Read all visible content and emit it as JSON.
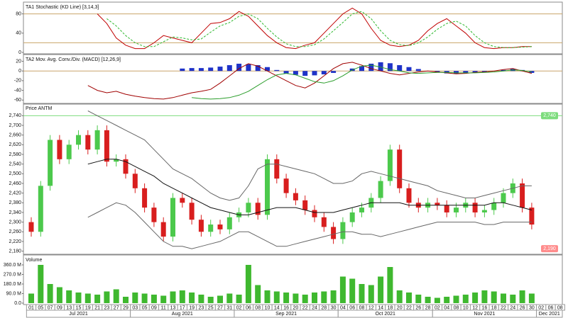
{
  "x_axis": {
    "dates": [
      "01",
      "05",
      "07",
      "09",
      "13",
      "15",
      "19",
      "21",
      "23",
      "27",
      "29",
      "03",
      "05",
      "09",
      "11",
      "13",
      "17",
      "19",
      "23",
      "25",
      "27",
      "31",
      "02",
      "06",
      "08",
      "10",
      "14",
      "16",
      "20",
      "22",
      "24",
      "28",
      "30",
      "04",
      "06",
      "08",
      "12",
      "14",
      "18",
      "20",
      "22",
      "26",
      "28",
      "02",
      "04",
      "08",
      "10",
      "12",
      "16",
      "18",
      "22",
      "24",
      "26",
      "30",
      "02",
      "06",
      "08"
    ],
    "months": [
      "Jul 2021",
      "Aug 2021",
      "Sep 2021",
      "Oct 2021",
      "Nov 2021",
      "Dec 2021"
    ]
  },
  "chart_data": [
    {
      "type": "line",
      "title": "TA1 Stochastic (KD Line) [3,14,3]",
      "ylim": [
        0,
        100
      ],
      "yticks": [
        0,
        40,
        80
      ],
      "levels": [
        20,
        80
      ],
      "level_color": "#c9a46a",
      "series": [
        {
          "name": "K",
          "color": "#c00000",
          "dash": false,
          "values": [
            null,
            null,
            null,
            null,
            null,
            null,
            null,
            80,
            60,
            30,
            15,
            8,
            8,
            20,
            35,
            30,
            25,
            20,
            40,
            60,
            62,
            70,
            85,
            75,
            55,
            35,
            20,
            10,
            8,
            15,
            20,
            40,
            60,
            80,
            92,
            80,
            50,
            25,
            15,
            12,
            15,
            25,
            45,
            60,
            70,
            55,
            40,
            20,
            10,
            8,
            10,
            10,
            12,
            12
          ]
        },
        {
          "name": "D",
          "color": "#2db82d",
          "dash": true,
          "values": [
            null,
            null,
            null,
            null,
            null,
            null,
            null,
            null,
            70,
            55,
            35,
            20,
            12,
            12,
            22,
            32,
            30,
            26,
            28,
            42,
            55,
            62,
            75,
            80,
            70,
            50,
            32,
            18,
            12,
            12,
            16,
            28,
            45,
            62,
            80,
            85,
            70,
            45,
            25,
            16,
            14,
            20,
            32,
            48,
            60,
            65,
            55,
            35,
            20,
            12,
            10,
            10,
            11,
            12
          ]
        }
      ]
    },
    {
      "type": "line",
      "title": "TA2 Mov. Avg. Conv./Div. (MACD) [12,26,9]",
      "ylim": [
        -64,
        31
      ],
      "yticks": [
        20,
        0,
        -20,
        -40,
        -60
      ],
      "levels": [
        0
      ],
      "level_color": "#c9a46a",
      "series": [
        {
          "name": "Histogram",
          "color": "#1f33c8",
          "style": "bar",
          "values": [
            null,
            null,
            null,
            null,
            null,
            null,
            null,
            null,
            null,
            null,
            null,
            null,
            null,
            null,
            null,
            null,
            5,
            6,
            6,
            7,
            9,
            12,
            15,
            14,
            12,
            8,
            2,
            -5,
            -8,
            -10,
            -9,
            -7,
            -4,
            0,
            5,
            10,
            15,
            18,
            16,
            12,
            8,
            4,
            0,
            -3,
            -5,
            -6,
            -4,
            -3,
            -2,
            0,
            2,
            4,
            2,
            -4
          ]
        },
        {
          "name": "MACD",
          "color": "#a00000",
          "values": [
            null,
            null,
            null,
            null,
            null,
            null,
            -30,
            -40,
            -45,
            -42,
            -48,
            -52,
            -55,
            -57,
            -58,
            -55,
            -50,
            -45,
            -42,
            -38,
            -25,
            -10,
            5,
            15,
            10,
            0,
            -10,
            -20,
            -30,
            -35,
            -25,
            -10,
            5,
            15,
            18,
            12,
            5,
            0,
            -5,
            -8,
            -5,
            -2,
            0,
            -2,
            -4,
            -6,
            -5,
            -3,
            -2,
            0,
            3,
            5,
            0,
            -5
          ]
        },
        {
          "name": "Signal",
          "color": "#2a9d2a",
          "values": [
            null,
            null,
            null,
            null,
            null,
            null,
            null,
            null,
            null,
            null,
            null,
            null,
            null,
            null,
            null,
            null,
            null,
            -55,
            -57,
            -58,
            -57,
            -55,
            -50,
            -42,
            -30,
            -18,
            -8,
            -5,
            -8,
            -15,
            -22,
            -25,
            -20,
            -10,
            2,
            10,
            12,
            8,
            3,
            0,
            -4,
            -5,
            -4,
            -3,
            -3,
            -4,
            -4,
            -4,
            -3,
            -2,
            0,
            2,
            1,
            -2
          ]
        }
      ]
    },
    {
      "type": "candlestick",
      "title": "Price ANTM",
      "ylim": [
        2170,
        2785
      ],
      "yticks": [
        {
          "value": 2180,
          "label": "2,180"
        },
        {
          "value": 2220,
          "label": "2,220"
        },
        {
          "value": 2260,
          "label": "2,260"
        },
        {
          "value": 2300,
          "label": "2,300"
        },
        {
          "value": 2340,
          "label": "2,340"
        },
        {
          "value": 2380,
          "label": "2,380"
        },
        {
          "value": 2420,
          "label": "2,420"
        },
        {
          "value": 2460,
          "label": "2,460"
        },
        {
          "value": 2500,
          "label": "2,500"
        },
        {
          "value": 2540,
          "label": "2,540"
        },
        {
          "value": 2580,
          "label": "2,580"
        },
        {
          "value": 2620,
          "label": "2,620"
        },
        {
          "value": 2660,
          "label": "2,660"
        },
        {
          "value": 2700,
          "label": "2,700"
        },
        {
          "value": 2740,
          "label": "2,740"
        }
      ],
      "up_color": "#4cc94c",
      "down_color": "#d81e1e",
      "open": [
        2300,
        2260,
        2450,
        2640,
        2560,
        2620,
        2660,
        2600,
        2680,
        2550,
        2560,
        2500,
        2440,
        2360,
        2300,
        2240,
        2400,
        2380,
        2310,
        2260,
        2290,
        2270,
        2320,
        2340,
        2380,
        2330,
        2560,
        2480,
        2420,
        2390,
        2350,
        2320,
        2280,
        2230,
        2300,
        2340,
        2360,
        2400,
        2470,
        2600,
        2440,
        2380,
        2360,
        2380,
        2370,
        2340,
        2360,
        2380,
        2340,
        2350,
        2380,
        2420,
        2460,
        2360
      ],
      "high": [
        2320,
        2470,
        2660,
        2660,
        2640,
        2680,
        2680,
        2700,
        2700,
        2580,
        2580,
        2520,
        2460,
        2380,
        2320,
        2420,
        2420,
        2400,
        2330,
        2310,
        2310,
        2340,
        2360,
        2400,
        2400,
        2580,
        2580,
        2500,
        2440,
        2410,
        2370,
        2340,
        2300,
        2320,
        2360,
        2380,
        2420,
        2490,
        2620,
        2620,
        2460,
        2400,
        2400,
        2400,
        2390,
        2380,
        2400,
        2400,
        2370,
        2400,
        2440,
        2480,
        2480,
        2380
      ],
      "low": [
        2240,
        2240,
        2430,
        2540,
        2540,
        2600,
        2580,
        2580,
        2530,
        2530,
        2480,
        2420,
        2340,
        2280,
        2220,
        2220,
        2360,
        2290,
        2240,
        2240,
        2250,
        2250,
        2300,
        2320,
        2310,
        2310,
        2460,
        2400,
        2370,
        2330,
        2300,
        2260,
        2210,
        2210,
        2280,
        2320,
        2340,
        2380,
        2450,
        2420,
        2360,
        2340,
        2340,
        2350,
        2320,
        2320,
        2340,
        2320,
        2320,
        2330,
        2360,
        2400,
        2340,
        2270
      ],
      "close": [
        2260,
        2450,
        2640,
        2560,
        2620,
        2660,
        2600,
        2680,
        2550,
        2560,
        2500,
        2440,
        2360,
        2300,
        2240,
        2400,
        2380,
        2310,
        2260,
        2290,
        2270,
        2320,
        2340,
        2380,
        2330,
        2560,
        2480,
        2420,
        2390,
        2350,
        2320,
        2280,
        2230,
        2300,
        2340,
        2360,
        2400,
        2470,
        2600,
        2440,
        2380,
        2360,
        2380,
        2370,
        2340,
        2360,
        2380,
        2340,
        2350,
        2380,
        2420,
        2460,
        2360,
        2290
      ],
      "series": [
        {
          "name": "MA",
          "color": "#111111",
          "values": [
            null,
            null,
            null,
            null,
            null,
            null,
            2540,
            2550,
            2560,
            2560,
            2550,
            2530,
            2510,
            2490,
            2460,
            2440,
            2420,
            2400,
            2380,
            2360,
            2350,
            2340,
            2330,
            2330,
            2340,
            2350,
            2360,
            2360,
            2360,
            2350,
            2340,
            2340,
            2340,
            2350,
            2360,
            2370,
            2380,
            2380,
            2380,
            2380,
            2370,
            2370,
            2370,
            2370,
            2370,
            2370,
            2370,
            2370,
            2370,
            2380,
            2380,
            2370,
            2360,
            2350
          ]
        },
        {
          "name": "Upper Band",
          "color": "#666666",
          "values": [
            null,
            null,
            null,
            null,
            null,
            null,
            2760,
            2740,
            2720,
            2700,
            2680,
            2660,
            2640,
            2600,
            2560,
            2520,
            2500,
            2480,
            2450,
            2420,
            2400,
            2390,
            2400,
            2450,
            2520,
            2540,
            2540,
            2530,
            2520,
            2510,
            2500,
            2480,
            2460,
            2460,
            2470,
            2500,
            2510,
            2500,
            2490,
            2480,
            2470,
            2460,
            2450,
            2430,
            2420,
            2410,
            2400,
            2400,
            2410,
            2420,
            2430,
            2440,
            2450,
            2450
          ]
        },
        {
          "name": "Lower Band",
          "color": "#666666",
          "values": [
            null,
            null,
            null,
            null,
            null,
            null,
            2320,
            2340,
            2360,
            2380,
            2370,
            2340,
            2300,
            2260,
            2220,
            2200,
            2200,
            2190,
            2200,
            2210,
            2220,
            2240,
            2260,
            2260,
            2240,
            2220,
            2200,
            2200,
            2210,
            2220,
            2230,
            2240,
            2250,
            2260,
            2260,
            2250,
            2250,
            2240,
            2250,
            2260,
            2270,
            2280,
            2290,
            2300,
            2300,
            2300,
            2300,
            2300,
            2290,
            2290,
            2300,
            2300,
            2300,
            2300
          ]
        }
      ],
      "tags": [
        {
          "value": 2740,
          "label": "2,740",
          "color": "#7ddc7d",
          "line": true
        },
        {
          "value": 2190,
          "label": "2,190",
          "color": "#ff8c8c",
          "line": false
        }
      ]
    },
    {
      "type": "bar",
      "title": "Volume",
      "color": "#3fb82f",
      "ylim": [
        0,
        440
      ],
      "yticks": [
        {
          "value": 0,
          "label": "0.0"
        },
        {
          "value": 90,
          "label": "90.0 M"
        },
        {
          "value": 180,
          "label": "180.0 M"
        },
        {
          "value": 270,
          "label": "270.0 M"
        },
        {
          "value": 360,
          "label": "360.0 M"
        }
      ],
      "values": [
        90,
        360,
        180,
        150,
        120,
        100,
        90,
        80,
        110,
        130,
        60,
        100,
        90,
        80,
        70,
        110,
        120,
        100,
        80,
        60,
        70,
        90,
        80,
        360,
        170,
        120,
        110,
        100,
        90,
        80,
        100,
        110,
        120,
        250,
        230,
        180,
        170,
        250,
        340,
        120,
        100,
        80,
        60,
        50,
        60,
        70,
        80,
        100,
        120,
        110,
        90,
        80,
        120,
        90
      ]
    }
  ]
}
